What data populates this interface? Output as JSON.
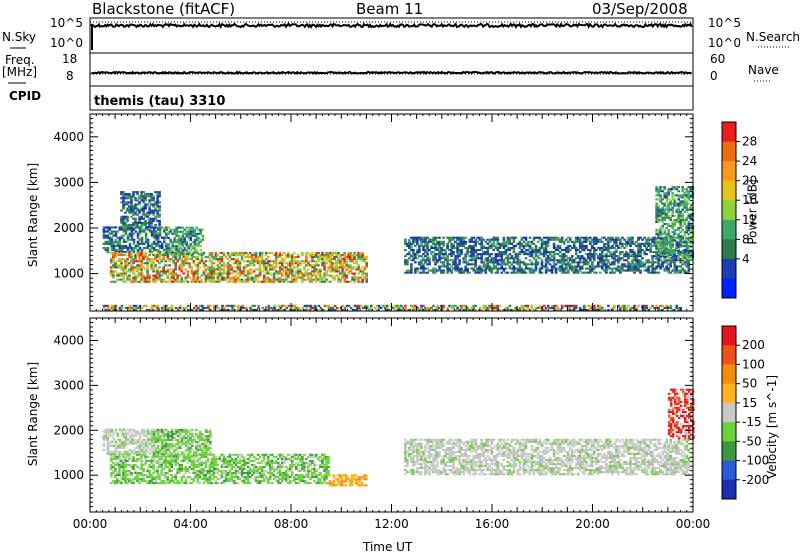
{
  "header": {
    "station": "Blackstone (fitACF)",
    "beam": "Beam 11",
    "date": "03/Sep/2008"
  },
  "param_panels": {
    "nsky_label": "N.Sky",
    "nsearch_label": "N.Search",
    "nsky_ticks": [
      "10^5",
      "10^0"
    ],
    "nsearch_ticks": [
      "10^5",
      "10^0"
    ],
    "freq_label": "Freq.",
    "freq_unit": "[MHz]",
    "freq_ticks": [
      "18",
      "8"
    ],
    "nave_label": "Nave",
    "nave_ticks": [
      "60",
      "0"
    ],
    "cpid_label": "CPID",
    "cpid_value": "themis (tau) 3310"
  },
  "chart_data": [
    {
      "type": "heatmap",
      "name": "power",
      "xlabel": "",
      "ylabel": "Slant Range [km]",
      "x_ticks": [
        "00:00",
        "04:00",
        "08:00",
        "12:00",
        "16:00",
        "20:00",
        "00:00"
      ],
      "xlim_hours": [
        0,
        24
      ],
      "y_ticks": [
        4000,
        3000,
        2000,
        1000
      ],
      "ylim_km": [
        180,
        4500
      ],
      "colorbar": {
        "label": "Power [dB]",
        "ticks": [
          28,
          24,
          20,
          16,
          12,
          8,
          4
        ],
        "colors": [
          "#0022ff",
          "#1a3fb0",
          "#2d7a4a",
          "#3da86a",
          "#8cd23a",
          "#e6c21a",
          "#f59a1a",
          "#f26a10",
          "#e8201a"
        ]
      },
      "regions": [
        {
          "t": [
            0.5,
            3.0
          ],
          "range_km": [
            1450,
            2000
          ],
          "level": "low"
        },
        {
          "t": [
            0.8,
            11.0
          ],
          "range_km": [
            800,
            1450
          ],
          "level": "high"
        },
        {
          "t": [
            1.2,
            2.8
          ],
          "range_km": [
            2000,
            2800
          ],
          "level": "low"
        },
        {
          "t": [
            3.0,
            4.5
          ],
          "range_km": [
            1400,
            2000
          ],
          "level": "mid"
        },
        {
          "t": [
            12.5,
            23.8
          ],
          "range_km": [
            1000,
            1800
          ],
          "level": "low"
        },
        {
          "t": [
            22.5,
            24.0
          ],
          "range_km": [
            1300,
            2900
          ],
          "level": "mid"
        },
        {
          "t": [
            0.5,
            23.5
          ],
          "range_km": [
            180,
            300
          ],
          "level": "ground"
        }
      ]
    },
    {
      "type": "heatmap",
      "name": "velocity",
      "xlabel": "Time UT",
      "ylabel": "Slant Range [km]",
      "x_ticks": [
        "00:00",
        "04:00",
        "08:00",
        "12:00",
        "16:00",
        "20:00",
        "00:00"
      ],
      "xlim_hours": [
        0,
        24
      ],
      "y_ticks": [
        4000,
        3000,
        2000,
        1000
      ],
      "ylim_km": [
        180,
        4500
      ],
      "colorbar": {
        "label": "Velocity [m s^-1]",
        "ticks": [
          200,
          100,
          50,
          15,
          -15,
          -50,
          -100,
          -200
        ],
        "colors": [
          "#1a2fb0",
          "#2a5ad8",
          "#3c9a3c",
          "#6cd23a",
          "#c8c8c8",
          "#ffb41e",
          "#f58c0a",
          "#f0501a",
          "#e6141e"
        ]
      },
      "regions": [
        {
          "t": [
            0.5,
            3.0
          ],
          "range_km": [
            1450,
            2000
          ],
          "level": "gray"
        },
        {
          "t": [
            0.8,
            9.5
          ],
          "range_km": [
            800,
            1450
          ],
          "level": "green"
        },
        {
          "t": [
            9.5,
            11.0
          ],
          "range_km": [
            750,
            1000
          ],
          "level": "orange"
        },
        {
          "t": [
            2.5,
            4.8
          ],
          "range_km": [
            1400,
            2000
          ],
          "level": "green"
        },
        {
          "t": [
            12.5,
            23.8
          ],
          "range_km": [
            1000,
            1800
          ],
          "level": "gray"
        },
        {
          "t": [
            23.0,
            24.0
          ],
          "range_km": [
            1800,
            2900
          ],
          "level": "red"
        }
      ]
    }
  ]
}
